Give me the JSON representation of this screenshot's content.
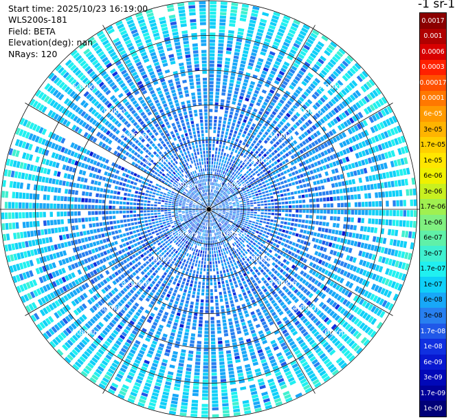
{
  "info": {
    "start_time": "Start time: 2025/10/23 16:19:00",
    "instrument": "WLS200s-181",
    "field": "Field: BETA",
    "elevation": "Elevation(deg): nan",
    "nrays": "NRays: 120"
  },
  "colorbar": {
    "title": "-1 sr-1",
    "labels": [
      "0.0017",
      "0.001",
      "0.0006",
      "0.0003",
      "0.00017",
      "0.0001",
      "6e-05",
      "3e-05",
      "1.7e-05",
      "1e-05",
      "6e-06",
      "3e-06",
      "1.7e-06",
      "1e-06",
      "6e-07",
      "3e-07",
      "1.7e-07",
      "1e-07",
      "6e-08",
      "3e-08",
      "1.7e-08",
      "1e-08",
      "6e-09",
      "3e-09",
      "1.7e-09",
      "1e-09"
    ],
    "colors": [
      "#8b0000",
      "#b00000",
      "#d80000",
      "#ff2000",
      "#ff5000",
      "#ff7800",
      "#ff9a00",
      "#ffb400",
      "#ffd000",
      "#ffe600",
      "#f0f000",
      "#c8f020",
      "#a0f050",
      "#80f080",
      "#60f0a8",
      "#40f0d0",
      "#20f0f0",
      "#10d0f8",
      "#18a8f8",
      "#2880f0",
      "#2058e8",
      "#1030e0",
      "#0818d0",
      "#0008b8",
      "#00009a",
      "#000078"
    ]
  },
  "range_labels": [
    "1.00km",
    "2.00km",
    "3.00km",
    "4.00km",
    "5.00km"
  ],
  "chart_data": {
    "type": "heatmap",
    "title": "",
    "field": "BETA",
    "nrays": 120,
    "elevation_deg": "nan",
    "range_rings_km": [
      1,
      2,
      3,
      4,
      5
    ],
    "max_range_km": 6,
    "value_range": [
      1e-09,
      0.0017
    ],
    "scale": "log",
    "typical_value_near_range": 3e-08,
    "typical_value_far_range": 2e-07,
    "missing_beam_azimuth_deg": 298
  }
}
